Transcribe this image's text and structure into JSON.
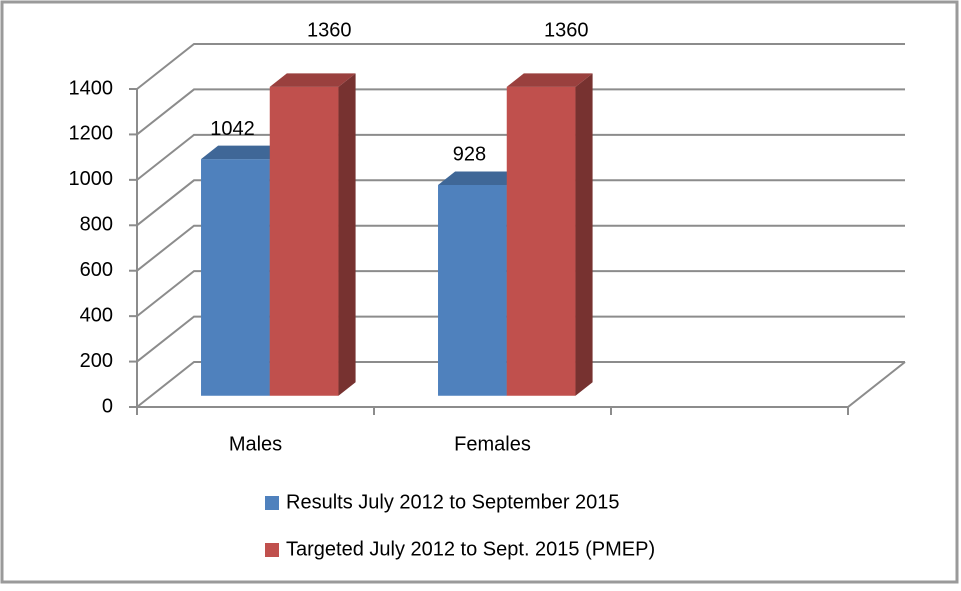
{
  "chart_data": {
    "type": "bar3d",
    "categories": [
      "Males",
      "Females",
      null
    ],
    "series": [
      {
        "name": "Results July 2012 to September 2015",
        "color": "#4f81bd",
        "values": [
          1042,
          928,
          null
        ]
      },
      {
        "name": "Targeted July 2012 to Sept. 2015 (PMEP)",
        "color": "#c0504d",
        "values": [
          1360,
          1360,
          null
        ]
      }
    ],
    "ylim": [
      0,
      1400
    ],
    "yticks": [
      0,
      200,
      400,
      600,
      800,
      1000,
      1200,
      1400
    ],
    "grid": true,
    "legend": "bottom"
  }
}
